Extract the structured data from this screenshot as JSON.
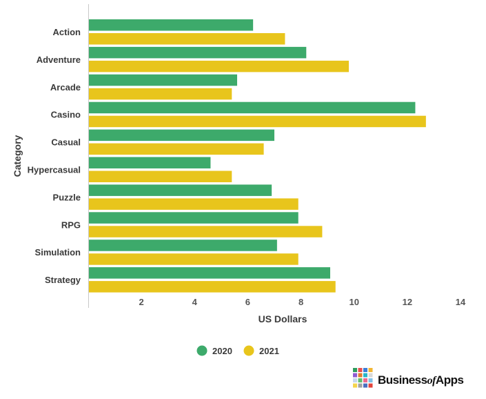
{
  "chart_data": {
    "type": "bar",
    "orientation": "horizontal",
    "categories": [
      "Action",
      "Adventure",
      "Arcade",
      "Casino",
      "Casual",
      "Hypercasual",
      "Puzzle",
      "RPG",
      "Simulation",
      "Strategy"
    ],
    "series": [
      {
        "name": "2020",
        "color": "#3daa6b",
        "values": [
          6.2,
          8.2,
          5.6,
          12.3,
          7.0,
          4.6,
          6.9,
          7.9,
          7.1,
          9.1
        ]
      },
      {
        "name": "2021",
        "color": "#e8c51c",
        "values": [
          7.4,
          9.8,
          5.4,
          12.7,
          6.6,
          5.4,
          7.9,
          8.8,
          7.9,
          9.3
        ]
      }
    ],
    "xlabel": "US Dollars",
    "ylabel": "Category",
    "xlim": [
      0,
      14
    ],
    "xticks": [
      2,
      4,
      6,
      8,
      10,
      12,
      14
    ],
    "grid": false,
    "legend_position": "bottom-center"
  },
  "branding": {
    "logo_prefix": "Business",
    "logo_of": "of",
    "logo_suffix": "Apps",
    "logo_colors": [
      "#2e9c5d",
      "#e94e4e",
      "#3b7dd8",
      "#f2b632",
      "#8e5bd1",
      "#e27c2f",
      "#29b6c9",
      "#d8d8d8",
      "#c7d8ef",
      "#5fbf6f",
      "#ee6a8e",
      "#7fc1e8",
      "#f4d44e",
      "#a2a2a2",
      "#4c6fbf",
      "#e3453c"
    ]
  }
}
